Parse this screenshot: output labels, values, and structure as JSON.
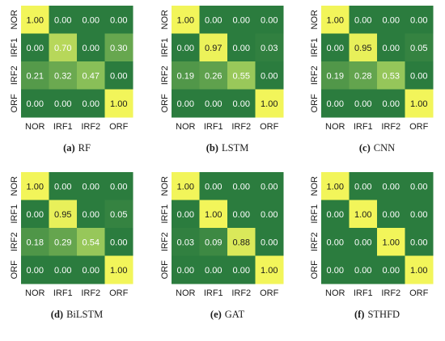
{
  "classes": [
    "NOR",
    "IRF1",
    "IRF2",
    "ORF"
  ],
  "colors": {
    "low": "#2b7c3e",
    "mid": "#8fc35a",
    "high": "#f2f55a",
    "text_light": "#ffffff",
    "text_dark": "#1a1a1a"
  },
  "chart_data": [
    {
      "type": "heatmap",
      "caption_letter": "(a)",
      "caption_name": "RF",
      "categories": [
        "NOR",
        "IRF1",
        "IRF2",
        "ORF"
      ],
      "values": [
        [
          1.0,
          0.0,
          0.0,
          0.0
        ],
        [
          0.0,
          0.7,
          0.0,
          0.3
        ],
        [
          0.21,
          0.32,
          0.47,
          0.0
        ],
        [
          0.0,
          0.0,
          0.0,
          1.0
        ]
      ],
      "labels": [
        [
          "1.00",
          "0.00",
          "0.00",
          "0.00"
        ],
        [
          "0.00",
          "0.70",
          "0.00",
          "0.30"
        ],
        [
          "0.21",
          "0.32",
          "0.47",
          "0.00"
        ],
        [
          "0.00",
          "0.00",
          "0.00",
          "1.00"
        ]
      ]
    },
    {
      "type": "heatmap",
      "caption_letter": "(b)",
      "caption_name": "LSTM",
      "categories": [
        "NOR",
        "IRF1",
        "IRF2",
        "ORF"
      ],
      "values": [
        [
          1.0,
          0.0,
          0.0,
          0.0
        ],
        [
          0.0,
          0.97,
          0.0,
          0.03
        ],
        [
          0.19,
          0.26,
          0.55,
          0.0
        ],
        [
          0.0,
          0.0,
          0.0,
          1.0
        ]
      ],
      "labels": [
        [
          "1.00",
          "0.00",
          "0.00",
          "0.00"
        ],
        [
          "0.00",
          "0.97",
          "0.00",
          "0.03"
        ],
        [
          "0.19",
          "0.26",
          "0.55",
          "0.00"
        ],
        [
          "0.00",
          "0.00",
          "0.00",
          "1.00"
        ]
      ]
    },
    {
      "type": "heatmap",
      "caption_letter": "(c)",
      "caption_name": "CNN",
      "categories": [
        "NOR",
        "IRF1",
        "IRF2",
        "ORF"
      ],
      "values": [
        [
          1.0,
          0.0,
          0.0,
          0.0
        ],
        [
          0.0,
          0.95,
          0.0,
          0.05
        ],
        [
          0.19,
          0.28,
          0.53,
          0.0
        ],
        [
          0.0,
          0.0,
          0.0,
          1.0
        ]
      ],
      "labels": [
        [
          "1.00",
          "0.00",
          "0.00",
          "0.00"
        ],
        [
          "0.00",
          "0.95",
          "0.00",
          "0.05"
        ],
        [
          "0.19",
          "0.28",
          "0.53",
          "0.00"
        ],
        [
          "0.00",
          "0.00",
          "0.00",
          "1.00"
        ]
      ]
    },
    {
      "type": "heatmap",
      "caption_letter": "(d)",
      "caption_name": "BiLSTM",
      "categories": [
        "NOR",
        "IRF1",
        "IRF2",
        "ORF"
      ],
      "values": [
        [
          1.0,
          0.0,
          0.0,
          0.0
        ],
        [
          0.0,
          0.95,
          0.0,
          0.05
        ],
        [
          0.18,
          0.29,
          0.54,
          0.0
        ],
        [
          0.0,
          0.0,
          0.0,
          1.0
        ]
      ],
      "labels": [
        [
          "1.00",
          "0.00",
          "0.00",
          "0.00"
        ],
        [
          "0.00",
          "0.95",
          "0.00",
          "0.05"
        ],
        [
          "0.18",
          "0.29",
          "0.54",
          "0.00"
        ],
        [
          "0.00",
          "0.00",
          "0.00",
          "1.00"
        ]
      ]
    },
    {
      "type": "heatmap",
      "caption_letter": "(e)",
      "caption_name": "GAT",
      "categories": [
        "NOR",
        "IRF1",
        "IRF2",
        "ORF"
      ],
      "values": [
        [
          1.0,
          0.0,
          0.0,
          0.0
        ],
        [
          0.0,
          1.0,
          0.0,
          0.0
        ],
        [
          0.03,
          0.09,
          0.88,
          0.0
        ],
        [
          0.0,
          0.0,
          0.0,
          1.0
        ]
      ],
      "labels": [
        [
          "1.00",
          "0.00",
          "0.00",
          "0.00"
        ],
        [
          "0.00",
          "1.00",
          "0.00",
          "0.00"
        ],
        [
          "0.03",
          "0.09",
          "0.88",
          "0.00"
        ],
        [
          "0.00",
          "0.00",
          "0.00",
          "1.00"
        ]
      ]
    },
    {
      "type": "heatmap",
      "caption_letter": "(f)",
      "caption_name": "STHFD",
      "categories": [
        "NOR",
        "IRF1",
        "IRF2",
        "ORF"
      ],
      "values": [
        [
          1.0,
          0.0,
          0.0,
          0.0
        ],
        [
          0.0,
          1.0,
          0.0,
          0.0
        ],
        [
          0.0,
          0.0,
          1.0,
          0.0
        ],
        [
          0.0,
          0.0,
          0.0,
          1.0
        ]
      ],
      "labels": [
        [
          "1.00",
          "0.00",
          "0.00",
          "0.00"
        ],
        [
          "0.00",
          "1.00",
          "0.00",
          "0.00"
        ],
        [
          "0.00",
          "0.00",
          "1.00",
          "0.00"
        ],
        [
          "0.00",
          "0.00",
          "0.00",
          "1.00"
        ]
      ]
    }
  ]
}
